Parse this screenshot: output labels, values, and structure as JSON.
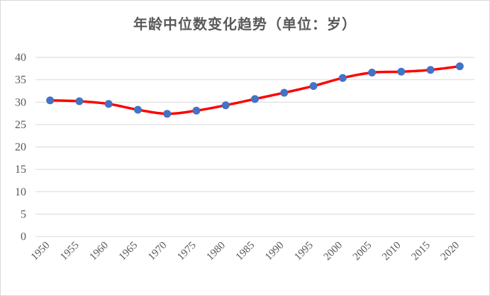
{
  "chart_data": {
    "type": "line",
    "title": "年龄中位数变化趋势（单位：岁）",
    "xlabel": "",
    "ylabel": "",
    "categories": [
      "1950",
      "1955",
      "1960",
      "1965",
      "1970",
      "1975",
      "1980",
      "1985",
      "1990",
      "1995",
      "2000",
      "2005",
      "2010",
      "2015",
      "2020"
    ],
    "series": [
      {
        "values": [
          30.4,
          30.2,
          29.6,
          28.3,
          27.4,
          28.1,
          29.3,
          30.7,
          32.1,
          33.6,
          35.4,
          36.6,
          36.8,
          37.2,
          38.0
        ],
        "line_color": "#ff0000",
        "marker_color": "#4472c4"
      }
    ],
    "ylim": [
      0,
      40
    ],
    "yticks": [
      0,
      5,
      10,
      15,
      20,
      25,
      30,
      35,
      40
    ],
    "grid": true,
    "legend": "none",
    "colors": {
      "grid": "#d9d9d9",
      "text": "#595959"
    }
  }
}
